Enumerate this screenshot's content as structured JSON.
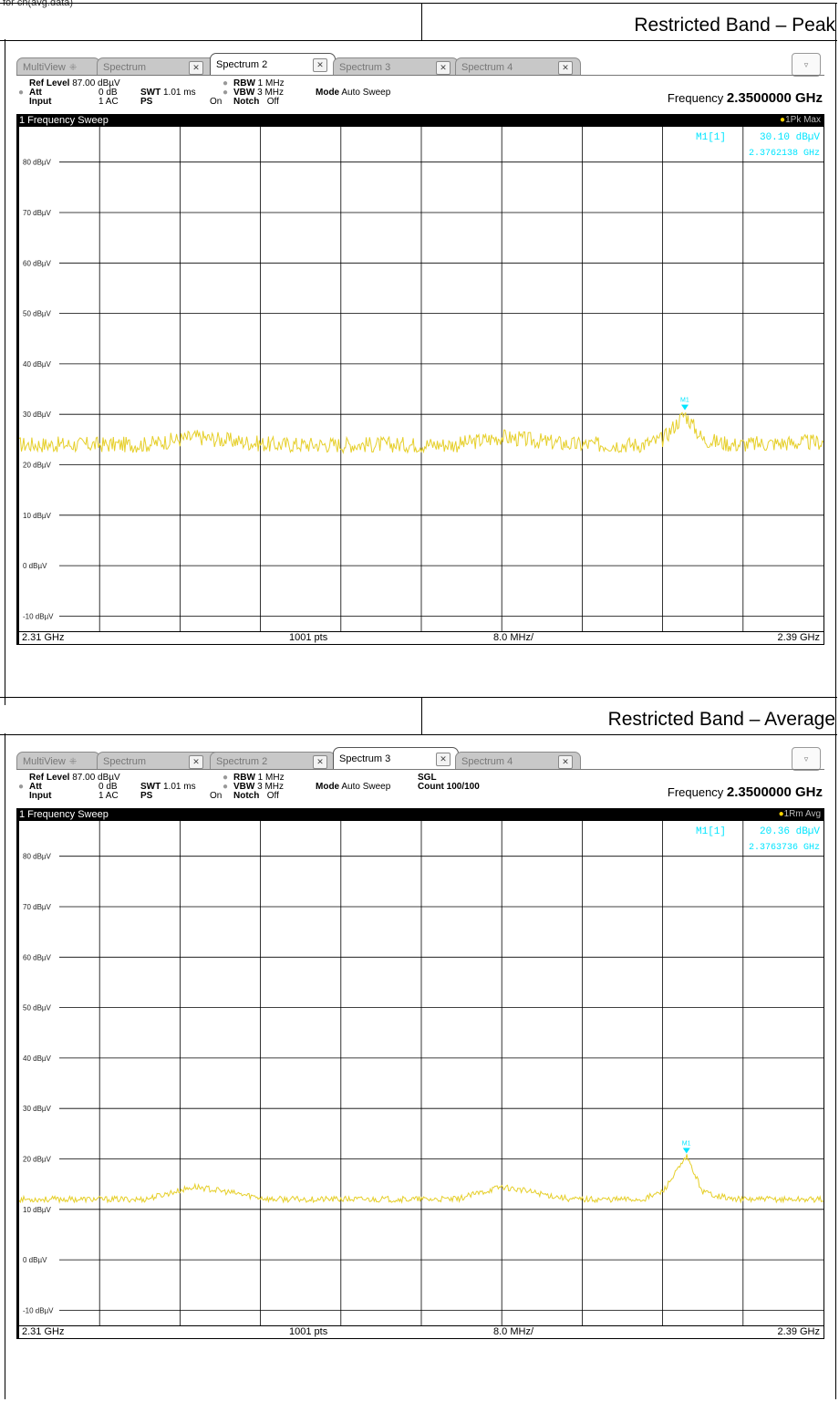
{
  "top_label": "for ch(avg.data)",
  "sections": [
    {
      "title": "Restricted Band – Peak",
      "tabs": [
        {
          "label": "MultiView",
          "active": false
        },
        {
          "label": "Spectrum",
          "active": false
        },
        {
          "label": "Spectrum 2",
          "active": true
        },
        {
          "label": "Spectrum 3",
          "active": false
        },
        {
          "label": "Spectrum 4",
          "active": false
        }
      ],
      "settings": {
        "ref_level_label": "Ref Level",
        "ref_level_value": "87.00 dBµV",
        "att_label": "Att",
        "att_value": "0 dB",
        "input_label": "Input",
        "input_value": "1 AC",
        "swt_label": "SWT",
        "swt_value": "1.01 ms",
        "ps_label": "PS",
        "ps_value": "On",
        "rbw_label": "RBW",
        "rbw_value": "1 MHz",
        "vbw_label": "VBW",
        "vbw_value": "3 MHz",
        "notch_label": "Notch",
        "notch_value": "Off",
        "mode_label": "Mode",
        "mode_value": "Auto Sweep",
        "sgl": "",
        "count": "",
        "frequency_label": "Frequency",
        "frequency_value": "2.3500000 GHz"
      },
      "sweep_label": "1 Frequency Sweep",
      "trace_label": "1Pk Max",
      "marker": {
        "name": "M1[1]",
        "level": "30.10 dBµV",
        "freq": "2.3762138 GHz",
        "tag": "M1"
      },
      "footer": {
        "start": "2.31 GHz",
        "points": "1001 pts",
        "span": "8.0 MHz/",
        "stop": "2.39 GHz"
      }
    },
    {
      "title": "Restricted Band – Average",
      "tabs": [
        {
          "label": "MultiView",
          "active": false
        },
        {
          "label": "Spectrum",
          "active": false
        },
        {
          "label": "Spectrum 2",
          "active": false
        },
        {
          "label": "Spectrum 3",
          "active": true
        },
        {
          "label": "Spectrum 4",
          "active": false
        }
      ],
      "settings": {
        "ref_level_label": "Ref Level",
        "ref_level_value": "87.00 dBµV",
        "att_label": "Att",
        "att_value": "0 dB",
        "input_label": "Input",
        "input_value": "1 AC",
        "swt_label": "SWT",
        "swt_value": "1.01 ms",
        "ps_label": "PS",
        "ps_value": "On",
        "rbw_label": "RBW",
        "rbw_value": "1 MHz",
        "vbw_label": "VBW",
        "vbw_value": "3 MHz",
        "notch_label": "Notch",
        "notch_value": "Off",
        "mode_label": "Mode",
        "mode_value": "Auto Sweep",
        "sgl": "SGL",
        "count": "Count 100/100",
        "frequency_label": "Frequency",
        "frequency_value": "2.3500000 GHz"
      },
      "sweep_label": "1 Frequency Sweep",
      "trace_label": "1Rm Avg",
      "marker": {
        "name": "M1[1]",
        "level": "20.36 dBµV",
        "freq": "2.3763736 GHz",
        "tag": "M1"
      },
      "footer": {
        "start": "2.31 GHz",
        "points": "1001 pts",
        "span": "8.0 MHz/",
        "stop": "2.39 GHz"
      }
    }
  ],
  "colors": {
    "trace": "#e6cf2a",
    "marker": "#00e5ff",
    "grid": "#000000",
    "sweep_bar": "#000000"
  },
  "chart_data": [
    {
      "type": "line",
      "title": "1 Frequency Sweep",
      "xlabel": "",
      "ylabel": "",
      "xlim": [
        2.31,
        2.39
      ],
      "ylim": [
        -13,
        87
      ],
      "y_ticks": [
        "80 dBµV",
        "70 dBµV",
        "60 dBµV",
        "50 dBµV",
        "40 dBµV",
        "30 dBµV",
        "20 dBµV",
        "10 dBµV",
        "0 dBµV",
        "-10 dBµV"
      ],
      "y_tick_values": [
        80,
        70,
        60,
        50,
        40,
        30,
        20,
        10,
        0,
        -10
      ],
      "grid": true,
      "series": [
        {
          "name": "1Pk Max",
          "x": [
            2.31,
            2.315,
            2.3225,
            2.3275,
            2.335,
            2.345,
            2.3535,
            2.358,
            2.365,
            2.372,
            2.374,
            2.3762,
            2.378,
            2.381,
            2.39
          ],
          "y": [
            24,
            24,
            24,
            25.5,
            24,
            24,
            24,
            25.5,
            24,
            24,
            25,
            30.1,
            25,
            24,
            24.5
          ]
        }
      ],
      "noise_floor": 24,
      "marker": {
        "x": 2.3762138,
        "y": 30.1
      }
    },
    {
      "type": "line",
      "title": "1 Frequency Sweep",
      "xlabel": "",
      "ylabel": "",
      "xlim": [
        2.31,
        2.39
      ],
      "ylim": [
        -13,
        87
      ],
      "y_ticks": [
        "80 dBµV",
        "70 dBµV",
        "60 dBµV",
        "50 dBµV",
        "40 dBµV",
        "30 dBµV",
        "20 dBµV",
        "10 dBµV",
        "0 dBµV",
        "-10 dBµV"
      ],
      "y_tick_values": [
        80,
        70,
        60,
        50,
        40,
        30,
        20,
        10,
        0,
        -10
      ],
      "grid": true,
      "series": [
        {
          "name": "1Rm Avg",
          "x": [
            2.31,
            2.315,
            2.3225,
            2.3275,
            2.335,
            2.345,
            2.3535,
            2.358,
            2.365,
            2.372,
            2.374,
            2.3764,
            2.378,
            2.381,
            2.39
          ],
          "y": [
            12,
            12,
            12,
            14.5,
            12,
            12,
            12,
            14.5,
            12,
            12,
            13.5,
            20.36,
            13.5,
            12,
            12
          ]
        }
      ],
      "noise_floor": 12,
      "marker": {
        "x": 2.3763736,
        "y": 20.36
      }
    }
  ]
}
